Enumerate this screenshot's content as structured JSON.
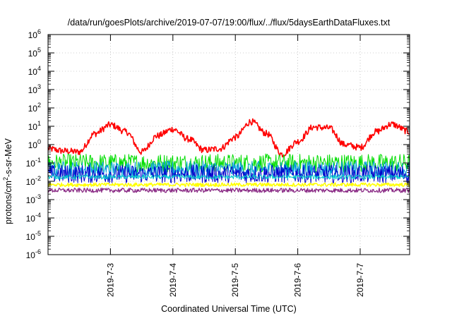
{
  "chart_data": {
    "type": "line",
    "title": "/data/run/goesPlots/archive/2019-07-07/19:00/flux/../flux/5daysEarthDataFluxes.txt",
    "xlabel": "Coordinated Universal Time (UTC)",
    "ylabel": "protons/cm²-s-sr-MeV",
    "y_scale": "log",
    "ylim": [
      1e-06,
      1000000.0
    ],
    "y_ticks": [
      {
        "value": 1e-06,
        "base": "10",
        "exp": "-6"
      },
      {
        "value": 1e-05,
        "base": "10",
        "exp": "-5"
      },
      {
        "value": 0.0001,
        "base": "10",
        "exp": "-4"
      },
      {
        "value": 0.001,
        "base": "10",
        "exp": "-3"
      },
      {
        "value": 0.01,
        "base": "10",
        "exp": "-2"
      },
      {
        "value": 0.1,
        "base": "10",
        "exp": "-1"
      },
      {
        "value": 1.0,
        "base": "10",
        "exp": "0"
      },
      {
        "value": 10.0,
        "base": "10",
        "exp": "1"
      },
      {
        "value": 100.0,
        "base": "10",
        "exp": "2"
      },
      {
        "value": 1000.0,
        "base": "10",
        "exp": "3"
      },
      {
        "value": 10000.0,
        "base": "10",
        "exp": "4"
      },
      {
        "value": 100000.0,
        "base": "10",
        "exp": "5"
      },
      {
        "value": 1000000.0,
        "base": "10",
        "exp": "6"
      }
    ],
    "xlim": [
      "2019-07-02T00:00",
      "2019-07-07T19:00"
    ],
    "x_ticks": [
      "2019-7-3",
      "2019-7-4",
      "2019-7-5",
      "2019-7-6",
      "2019-7-7"
    ],
    "x_tick_dates": [
      "2019-07-03T00:00",
      "2019-07-04T00:00",
      "2019-07-05T00:00",
      "2019-07-06T00:00",
      "2019-07-07T00:00"
    ],
    "grid": true,
    "series": [
      {
        "color": "#ff0000",
        "stroke_width": 1.6,
        "noise": 0.18,
        "x": [
          "2019-07-02T00:00",
          "2019-07-02T06:00",
          "2019-07-02T12:00",
          "2019-07-02T18:00",
          "2019-07-03T00:00",
          "2019-07-03T06:00",
          "2019-07-03T12:00",
          "2019-07-03T18:00",
          "2019-07-04T00:00",
          "2019-07-04T06:00",
          "2019-07-04T12:00",
          "2019-07-04T18:00",
          "2019-07-05T00:00",
          "2019-07-05T06:00",
          "2019-07-05T12:00",
          "2019-07-05T18:00",
          "2019-07-06T00:00",
          "2019-07-06T06:00",
          "2019-07-06T12:00",
          "2019-07-06T18:00",
          "2019-07-07T00:00",
          "2019-07-07T06:00",
          "2019-07-07T12:00",
          "2019-07-07T19:00"
        ],
        "y": [
          0.6,
          0.45,
          0.4,
          4,
          12,
          5,
          0.4,
          3,
          7,
          2,
          0.5,
          0.6,
          2.5,
          18,
          4,
          0.3,
          1.5,
          9,
          8,
          1,
          0.7,
          5,
          13,
          5
        ]
      },
      {
        "color": "#00dd00",
        "stroke_width": 1,
        "noise": 0.5,
        "x": [
          "2019-07-02T00:00",
          "2019-07-07T19:00"
        ],
        "y": [
          0.1,
          0.1
        ]
      },
      {
        "color": "#009edb",
        "stroke_width": 1,
        "noise": 0.45,
        "x": [
          "2019-07-02T00:00",
          "2019-07-07T19:00"
        ],
        "y": [
          0.045,
          0.045
        ]
      },
      {
        "color": "#0000cc",
        "stroke_width": 1,
        "noise": 0.5,
        "x": [
          "2019-07-02T00:00",
          "2019-07-07T19:00"
        ],
        "y": [
          0.025,
          0.025
        ]
      },
      {
        "color": "#00cccc",
        "stroke_width": 1,
        "noise": 0.12,
        "x": [
          "2019-07-02T00:00",
          "2019-07-07T19:00"
        ],
        "y": [
          0.017,
          0.017
        ]
      },
      {
        "color": "#ffff00",
        "stroke_width": 1.5,
        "noise": 0.1,
        "x": [
          "2019-07-02T00:00",
          "2019-07-07T19:00"
        ],
        "y": [
          0.0065,
          0.0065
        ]
      },
      {
        "color": "#8b2c86",
        "stroke_width": 1.3,
        "noise": 0.12,
        "x": [
          "2019-07-02T00:00",
          "2019-07-07T19:00"
        ],
        "y": [
          0.0032,
          0.0032
        ]
      }
    ]
  }
}
